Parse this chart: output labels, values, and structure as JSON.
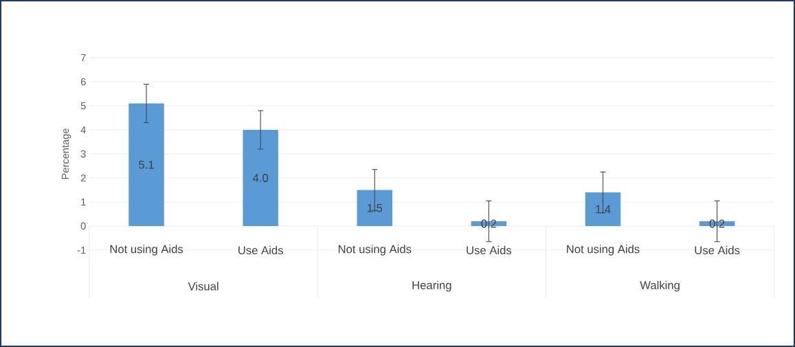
{
  "chart_data": {
    "type": "bar",
    "ylabel": "Percentage",
    "categories": [
      "Not using Aids",
      "Use Aids",
      "Not using Aids",
      "Use Aids",
      "Not using Aids",
      "Use Aids"
    ],
    "values": [
      5.1,
      4.0,
      1.5,
      0.2,
      1.4,
      0.2
    ],
    "value_labels": [
      "5.1",
      "4.0",
      "1.5",
      "0.2",
      "1.4",
      "0.2"
    ],
    "errors": [
      0.8,
      0.8,
      0.85,
      0.85,
      0.85,
      0.85
    ],
    "color": "#5b9bd5",
    "ylim": [
      -1,
      7
    ],
    "yticks": [
      -1,
      0,
      1,
      2,
      3,
      4,
      5,
      6,
      7
    ],
    "grid": "y",
    "annotations": [
      "Visual",
      "Hearing",
      "Walking"
    ]
  }
}
